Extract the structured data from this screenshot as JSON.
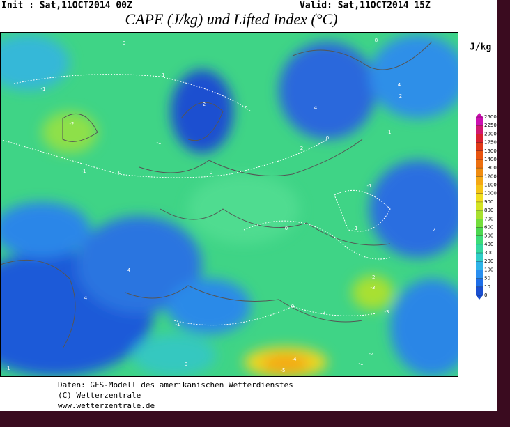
{
  "header": {
    "init": "Init : Sat,11OCT2014 00Z",
    "valid": "Valid: Sat,11OCT2014 15Z",
    "title": "CAPE (J/kg) und Lifted Index (°C)"
  },
  "colorbar": {
    "unit": "J/kg",
    "ticks": [
      0,
      10,
      50,
      100,
      200,
      300,
      400,
      500,
      600,
      700,
      800,
      900,
      1000,
      1100,
      1200,
      1300,
      1400,
      1500,
      1750,
      2000,
      2250,
      2500
    ],
    "colors": [
      "#1a4fd0",
      "#1e6ee8",
      "#2a8ff0",
      "#2fb4e8",
      "#30cfc8",
      "#34d8a0",
      "#3cdc78",
      "#4cd850",
      "#74de3c",
      "#a8e030",
      "#d4e424",
      "#f0de20",
      "#f4c418",
      "#f4a814",
      "#f08c10",
      "#ec7010",
      "#e85410",
      "#e03818",
      "#d82030",
      "#d01870",
      "#cc10b0"
    ]
  },
  "contour_labels": [
    "0",
    "-1",
    "-1",
    "2",
    "0",
    "-2",
    "-1",
    "-1",
    "0",
    "0",
    "2",
    "4",
    "0",
    "-1",
    "4",
    "8",
    "2",
    "-1",
    "0",
    "-1",
    "2",
    "0",
    "-2",
    "-3",
    "4",
    "4",
    "-1",
    "0",
    "-4",
    "-5",
    "-3",
    "-2",
    "-1",
    "2",
    "0",
    "-1"
  ],
  "footer": {
    "source": "Daten: GFS-Modell des amerikanischen Wetterdienstes",
    "copyright": "(C) Wetterzentrale",
    "url": "www.wetterzentrale.de"
  }
}
